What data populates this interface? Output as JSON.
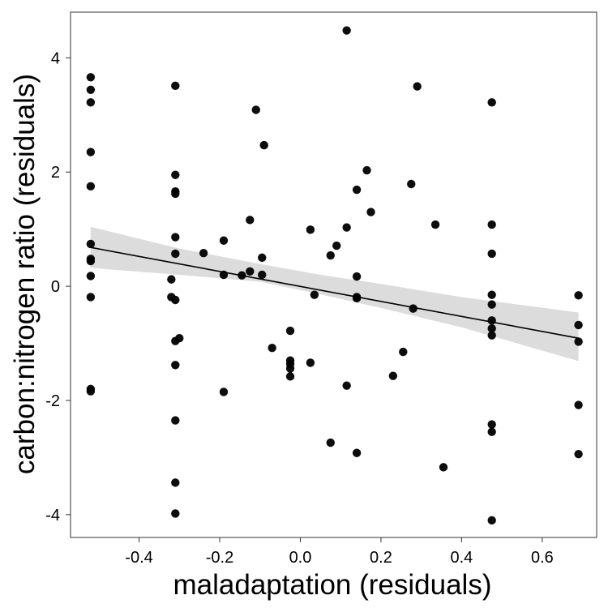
{
  "chart_data": {
    "type": "scatter",
    "title": "",
    "xlabel": "maladaptation (residuals)",
    "ylabel": "carbon:nitrogen ratio (residuals)",
    "xlim": [
      -0.57,
      0.735
    ],
    "ylim": [
      -4.4,
      4.8
    ],
    "xticks": [
      -0.4,
      -0.2,
      0.0,
      0.2,
      0.4,
      0.6
    ],
    "xtick_labels": [
      "-0.4",
      "-0.2",
      "0.0",
      "0.2",
      "0.4",
      "0.6"
    ],
    "yticks": [
      -4,
      -2,
      0,
      2,
      4
    ],
    "ytick_labels": [
      "-4",
      "-2",
      "0",
      "2",
      "4"
    ],
    "grid": false,
    "points": [
      {
        "x": -0.52,
        "y": 3.66
      },
      {
        "x": -0.52,
        "y": 3.44
      },
      {
        "x": -0.52,
        "y": 3.22
      },
      {
        "x": -0.52,
        "y": 2.35
      },
      {
        "x": -0.52,
        "y": 1.75
      },
      {
        "x": -0.52,
        "y": 0.74
      },
      {
        "x": -0.52,
        "y": 0.48
      },
      {
        "x": -0.52,
        "y": 0.44
      },
      {
        "x": -0.52,
        "y": 0.18
      },
      {
        "x": -0.52,
        "y": -0.19
      },
      {
        "x": -0.52,
        "y": -1.8
      },
      {
        "x": -0.52,
        "y": -1.84
      },
      {
        "x": -0.31,
        "y": 3.51
      },
      {
        "x": -0.31,
        "y": 1.95
      },
      {
        "x": -0.31,
        "y": 1.66
      },
      {
        "x": -0.31,
        "y": 1.62
      },
      {
        "x": -0.31,
        "y": 0.86
      },
      {
        "x": -0.31,
        "y": 0.57
      },
      {
        "x": -0.31,
        "y": -0.24
      },
      {
        "x": -0.31,
        "y": -0.96
      },
      {
        "x": -0.31,
        "y": -1.38
      },
      {
        "x": -0.31,
        "y": -2.35
      },
      {
        "x": -0.31,
        "y": -3.44
      },
      {
        "x": -0.31,
        "y": -3.98
      },
      {
        "x": -0.32,
        "y": 0.12
      },
      {
        "x": -0.32,
        "y": -0.19
      },
      {
        "x": -0.3,
        "y": -0.91
      },
      {
        "x": -0.24,
        "y": 0.58
      },
      {
        "x": -0.19,
        "y": 0.8
      },
      {
        "x": -0.19,
        "y": 0.2
      },
      {
        "x": -0.19,
        "y": -1.85
      },
      {
        "x": -0.145,
        "y": 0.19
      },
      {
        "x": -0.125,
        "y": 1.16
      },
      {
        "x": -0.125,
        "y": 0.26
      },
      {
        "x": -0.11,
        "y": 3.09
      },
      {
        "x": -0.095,
        "y": 0.5
      },
      {
        "x": -0.095,
        "y": 0.2
      },
      {
        "x": -0.09,
        "y": 2.47
      },
      {
        "x": -0.07,
        "y": -1.08
      },
      {
        "x": -0.025,
        "y": -0.78
      },
      {
        "x": -0.025,
        "y": -1.3
      },
      {
        "x": -0.025,
        "y": -1.36
      },
      {
        "x": -0.025,
        "y": -1.44
      },
      {
        "x": -0.025,
        "y": -1.58
      },
      {
        "x": 0.025,
        "y": 0.99
      },
      {
        "x": 0.025,
        "y": -1.34
      },
      {
        "x": 0.035,
        "y": -0.15
      },
      {
        "x": 0.075,
        "y": 0.54
      },
      {
        "x": 0.075,
        "y": -2.74
      },
      {
        "x": 0.09,
        "y": 0.71
      },
      {
        "x": 0.115,
        "y": 4.48
      },
      {
        "x": 0.115,
        "y": 1.03
      },
      {
        "x": 0.115,
        "y": -1.74
      },
      {
        "x": 0.14,
        "y": 1.69
      },
      {
        "x": 0.14,
        "y": 0.17
      },
      {
        "x": 0.14,
        "y": -0.19
      },
      {
        "x": 0.14,
        "y": -0.21
      },
      {
        "x": 0.14,
        "y": -2.92
      },
      {
        "x": 0.165,
        "y": 2.03
      },
      {
        "x": 0.175,
        "y": 1.3
      },
      {
        "x": 0.23,
        "y": -1.57
      },
      {
        "x": 0.255,
        "y": -1.15
      },
      {
        "x": 0.275,
        "y": 1.79
      },
      {
        "x": 0.28,
        "y": -0.39
      },
      {
        "x": 0.29,
        "y": 3.5
      },
      {
        "x": 0.335,
        "y": 1.08
      },
      {
        "x": 0.355,
        "y": -3.17
      },
      {
        "x": 0.475,
        "y": 3.22
      },
      {
        "x": 0.475,
        "y": 1.08
      },
      {
        "x": 0.475,
        "y": 0.57
      },
      {
        "x": 0.475,
        "y": -0.15
      },
      {
        "x": 0.475,
        "y": -0.32
      },
      {
        "x": 0.475,
        "y": -0.6
      },
      {
        "x": 0.475,
        "y": -0.74
      },
      {
        "x": 0.475,
        "y": -0.86
      },
      {
        "x": 0.475,
        "y": -2.42
      },
      {
        "x": 0.475,
        "y": -2.55
      },
      {
        "x": 0.475,
        "y": -4.1
      },
      {
        "x": 0.69,
        "y": -0.16
      },
      {
        "x": 0.69,
        "y": -0.68
      },
      {
        "x": 0.69,
        "y": -0.97
      },
      {
        "x": 0.69,
        "y": -2.08
      },
      {
        "x": 0.69,
        "y": -2.94
      }
    ],
    "trend_line": {
      "x": [
        -0.52,
        0.69
      ],
      "y": [
        0.68,
        -0.91
      ]
    },
    "confidence_band": {
      "x": [
        -0.52,
        -0.3,
        -0.1,
        0.05,
        0.2,
        0.4,
        0.69
      ],
      "upper": [
        1.04,
        0.66,
        0.39,
        0.2,
        0.04,
        -0.19,
        -0.46
      ],
      "lower": [
        0.32,
        0.2,
        0.08,
        -0.14,
        -0.38,
        -0.72,
        -1.31
      ]
    },
    "colors": {
      "points": "#000000",
      "line": "#000000",
      "band": "#d6d6d6",
      "frame": "#333333"
    }
  }
}
